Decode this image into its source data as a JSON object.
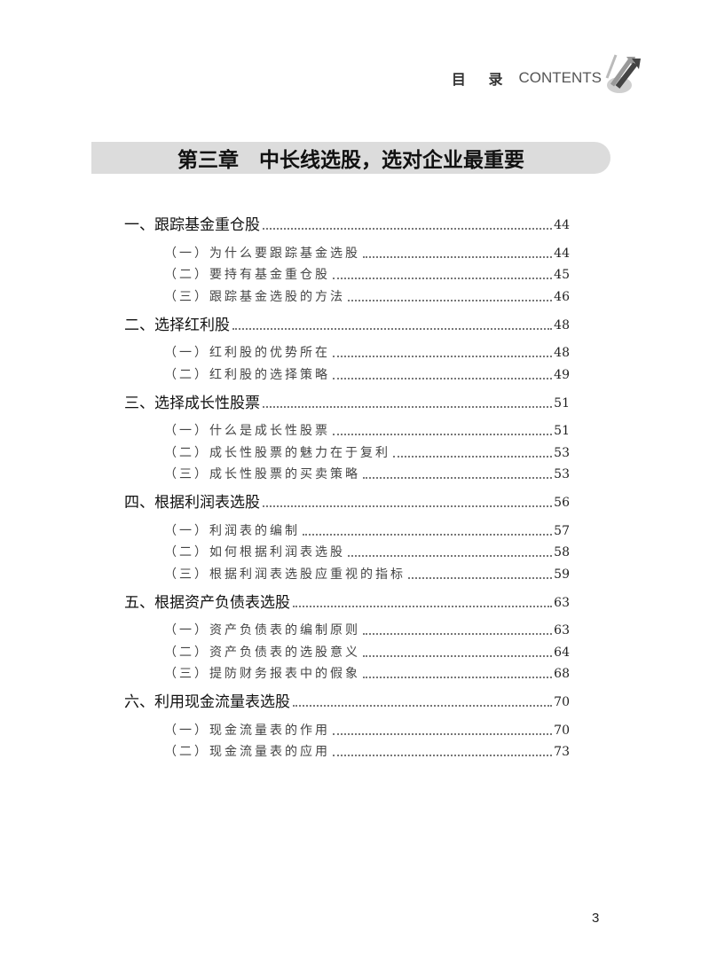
{
  "header": {
    "title_cn": "目 录",
    "title_en": "CONTENTS",
    "icon": "arrows-up-icon"
  },
  "chapter": {
    "title": "第三章　中长线选股，选对企业最重要"
  },
  "toc": [
    {
      "level": "section",
      "title": "一、跟踪基金重仓股",
      "page": "44"
    },
    {
      "level": "sub",
      "title": "（一）为什么要跟踪基金选股",
      "page": "44"
    },
    {
      "level": "sub",
      "title": "（二）要持有基金重仓股",
      "page": "45"
    },
    {
      "level": "sub",
      "title": "（三）跟踪基金选股的方法",
      "page": "46"
    },
    {
      "level": "section",
      "title": "二、选择红利股",
      "page": "48"
    },
    {
      "level": "sub",
      "title": "（一）红利股的优势所在",
      "page": "48"
    },
    {
      "level": "sub",
      "title": "（二）红利股的选择策略",
      "page": "49"
    },
    {
      "level": "section",
      "title": "三、选择成长性股票",
      "page": "51"
    },
    {
      "level": "sub",
      "title": "（一）什么是成长性股票",
      "page": "51"
    },
    {
      "level": "sub",
      "title": "（二）成长性股票的魅力在于复利",
      "page": "53"
    },
    {
      "level": "sub",
      "title": "（三）成长性股票的买卖策略",
      "page": "53"
    },
    {
      "level": "section",
      "title": "四、根据利润表选股",
      "page": "56"
    },
    {
      "level": "sub",
      "title": "（一）利润表的编制",
      "page": "57"
    },
    {
      "level": "sub",
      "title": "（二）如何根据利润表选股",
      "page": "58"
    },
    {
      "level": "sub",
      "title": "（三）根据利润表选股应重视的指标",
      "page": "59"
    },
    {
      "level": "section",
      "title": "五、根据资产负债表选股",
      "page": "63"
    },
    {
      "level": "sub",
      "title": "（一）资产负债表的编制原则",
      "page": "63"
    },
    {
      "level": "sub",
      "title": "（二）资产负债表的选股意义",
      "page": "64"
    },
    {
      "level": "sub",
      "title": "（三）提防财务报表中的假象",
      "page": "68"
    },
    {
      "level": "section",
      "title": "六、利用现金流量表选股",
      "page": "70"
    },
    {
      "level": "sub",
      "title": "（一）现金流量表的作用",
      "page": "70"
    },
    {
      "level": "sub",
      "title": "（二）现金流量表的应用",
      "page": "73"
    }
  ],
  "page_number": "3"
}
